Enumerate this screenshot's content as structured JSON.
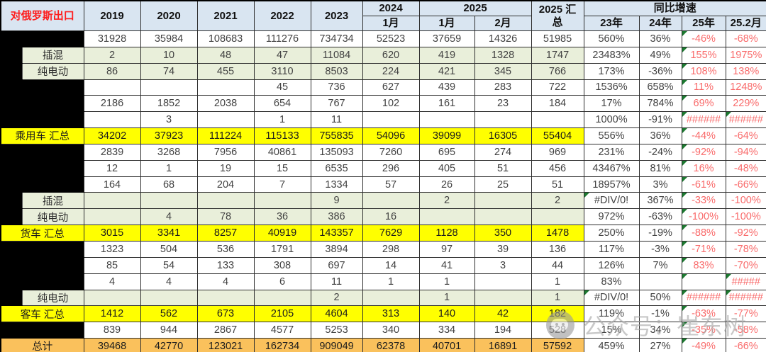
{
  "header": {
    "corner": "对俄罗斯出口",
    "y2019": "2019",
    "y2020": "2020",
    "y2021": "2021",
    "y2022": "2022",
    "y2023": "2023",
    "g2024": "2024",
    "g2025": "2025",
    "sum2025": "2025 汇总",
    "growth": "同比增速",
    "m2024_1": "1月",
    "m2025_1": "1月",
    "m2025_2": "2月",
    "g23": "23年",
    "g24": "24年",
    "g25": "25年",
    "g252": "25.2月"
  },
  "watermark": {
    "text": "公众号：崔东树",
    "icon": "wechat-icon"
  },
  "colors": {
    "header_bg": "#D9E5F1",
    "title_red": "#FE1E1E",
    "section_yellow": "#FFFF00",
    "total_orange": "#FAC15C",
    "sub_green": "#E9EFDA",
    "label_black": "#000000",
    "growth_red": "#F96A6A",
    "triangle_green": "#1C7A30"
  },
  "chart_data": {
    "type": "table",
    "title": "对俄罗斯出口",
    "columns": [
      "2019",
      "2020",
      "2021",
      "2022",
      "2023",
      "2024 1月",
      "2025 1月",
      "2025 2月",
      "2025 汇总",
      "同比增速 23年",
      "同比增速 24年",
      "同比增速 25年",
      "同比增速 25.2月"
    ],
    "rows": [
      {
        "label": "",
        "style": "plain",
        "values": [
          "31928",
          "35984",
          "108683",
          "111276",
          "734734",
          "52523",
          "37659",
          "14326",
          "51985",
          "560%",
          "36%",
          "-46%",
          "-68%"
        ],
        "tri": [
          11
        ]
      },
      {
        "label": "插混",
        "style": "sub",
        "values": [
          "2",
          "10",
          "48",
          "47",
          "11084",
          "620",
          "419",
          "1328",
          "1747",
          "23483%",
          "49%",
          "155%",
          "1975%"
        ],
        "tri": [
          11
        ]
      },
      {
        "label": "纯电动",
        "style": "sub",
        "values": [
          "86",
          "74",
          "455",
          "3110",
          "8503",
          "224",
          "421",
          "345",
          "766",
          "173%",
          "-36%",
          "108%",
          "138%"
        ],
        "tri": [
          11
        ]
      },
      {
        "label": "",
        "style": "plain",
        "values": [
          "",
          "",
          "",
          "45",
          "736",
          "627",
          "439",
          "283",
          "722",
          "1536%",
          "658%",
          "11%",
          "1248%"
        ],
        "tri": [
          11
        ]
      },
      {
        "label": "",
        "style": "plain",
        "values": [
          "2186",
          "1852",
          "2038",
          "654",
          "767",
          "102",
          "161",
          "23",
          "184",
          "17%",
          "784%",
          "69%",
          "229%"
        ],
        "tri": [
          11
        ]
      },
      {
        "label": "",
        "style": "plain",
        "values": [
          "",
          "3",
          "",
          "1",
          "11",
          "",
          "",
          "",
          "",
          "1000%",
          "-91%",
          "######",
          "######"
        ],
        "tri": [
          11,
          12
        ]
      },
      {
        "label": "乘用车 汇总",
        "style": "section",
        "values": [
          "34202",
          "37923",
          "111224",
          "115133",
          "755835",
          "54096",
          "39099",
          "16305",
          "55404",
          "556%",
          "36%",
          "-44%",
          "-64%"
        ],
        "tri": [
          11
        ]
      },
      {
        "label": "",
        "style": "plain",
        "values": [
          "2839",
          "3268",
          "7956",
          "40861",
          "135093",
          "7260",
          "695",
          "274",
          "969",
          "231%",
          "-24%",
          "-92%",
          "-94%"
        ],
        "tri": [
          11
        ]
      },
      {
        "label": "",
        "style": "plain",
        "values": [
          "12",
          "1",
          "19",
          "15",
          "6535",
          "296",
          "405",
          "51",
          "456",
          "43467%",
          "81%",
          "16%",
          "-48%"
        ],
        "tri": [
          11
        ]
      },
      {
        "label": "",
        "style": "plain",
        "values": [
          "164",
          "68",
          "204",
          "7",
          "1334",
          "57",
          "26",
          "25",
          "51",
          "18957%",
          "3%",
          "-61%",
          "-66%"
        ],
        "tri": [
          11
        ]
      },
      {
        "label": "插混",
        "style": "sub",
        "values": [
          "",
          "",
          "",
          "",
          "9",
          "",
          "2",
          "",
          "2",
          "#DIV/0!",
          "367%",
          "-33%",
          "-100%"
        ],
        "tri": [
          9,
          11
        ]
      },
      {
        "label": "纯电动",
        "style": "sub",
        "values": [
          "",
          "4",
          "78",
          "36",
          "386",
          "16",
          "",
          "",
          "",
          "972%",
          "-63%",
          "-100%",
          "-100%"
        ],
        "tri": [
          11
        ]
      },
      {
        "label": "货车 汇总",
        "style": "section",
        "values": [
          "3015",
          "3341",
          "8257",
          "40919",
          "143357",
          "7629",
          "1128",
          "350",
          "1478",
          "250%",
          "-19%",
          "-88%",
          "-92%"
        ],
        "tri": [
          11
        ]
      },
      {
        "label": "",
        "style": "plain",
        "values": [
          "1323",
          "504",
          "536",
          "1791",
          "3894",
          "298",
          "97",
          "39",
          "136",
          "117%",
          "-3%",
          "-71%",
          "-78%"
        ],
        "tri": [
          11
        ]
      },
      {
        "label": "",
        "style": "plain",
        "values": [
          "85",
          "54",
          "133",
          "308",
          "697",
          "14",
          "41",
          "3",
          "44",
          "126%",
          "7%",
          "83%",
          "-70%"
        ],
        "tri": [
          11
        ]
      },
      {
        "label": "",
        "style": "plain",
        "values": [
          "4",
          "4",
          "4",
          "6",
          "11",
          "1",
          "1",
          "",
          "1",
          "83%",
          "",
          "",
          "#####"
        ],
        "tri": [
          11,
          12
        ]
      },
      {
        "label": "纯电动",
        "style": "sub",
        "values": [
          "",
          "",
          "",
          "",
          "2",
          "",
          "1",
          "",
          "1",
          "#DIV/0!",
          "50%",
          "######",
          "######"
        ],
        "tri": [
          9,
          11,
          12
        ]
      },
      {
        "label": "客车 汇总",
        "style": "section",
        "values": [
          "1412",
          "562",
          "673",
          "2105",
          "4604",
          "313",
          "140",
          "42",
          "182",
          "119%",
          "-1%",
          "-63%",
          "-77%"
        ],
        "tri": [
          11
        ]
      },
      {
        "label": "",
        "style": "plain",
        "values": [
          "839",
          "944",
          "2867",
          "4577",
          "5253",
          "340",
          "334",
          "194",
          "528",
          "15%",
          "34%",
          "-35%",
          "-58%"
        ],
        "tri": [
          11
        ]
      },
      {
        "label": "总计",
        "style": "total",
        "values": [
          "39468",
          "42770",
          "123021",
          "162734",
          "909049",
          "62378",
          "40701",
          "16891",
          "57592",
          "459%",
          "27%",
          "-49%",
          "-66%"
        ],
        "tri": [
          11
        ]
      }
    ]
  }
}
